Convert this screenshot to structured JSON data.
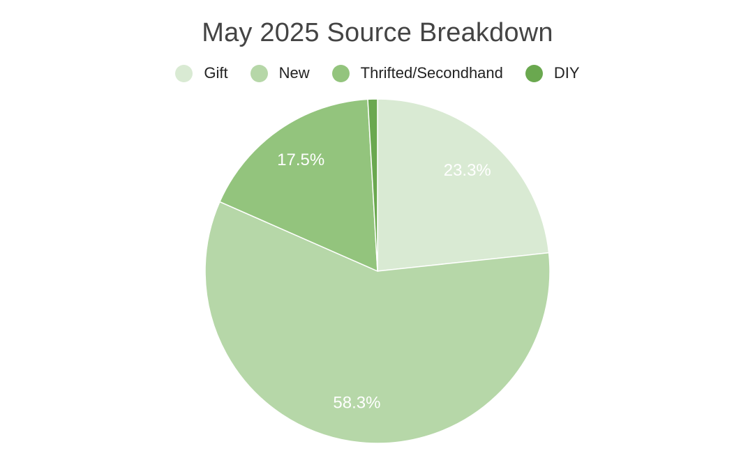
{
  "chart_data": {
    "type": "pie",
    "title": "May 2025 Source Breakdown",
    "legend_position": "top",
    "slices": [
      {
        "name": "Gift",
        "value": 23.3,
        "label": "23.3%",
        "color": "#d9ead3"
      },
      {
        "name": "New",
        "value": 58.3,
        "label": "58.3%",
        "color": "#b6d7a8"
      },
      {
        "name": "Thrifted/Secondhand",
        "value": 17.5,
        "label": "17.5%",
        "color": "#93c47d"
      },
      {
        "name": "DIY",
        "value": 0.9,
        "label": "",
        "color": "#6aa84f"
      }
    ]
  }
}
